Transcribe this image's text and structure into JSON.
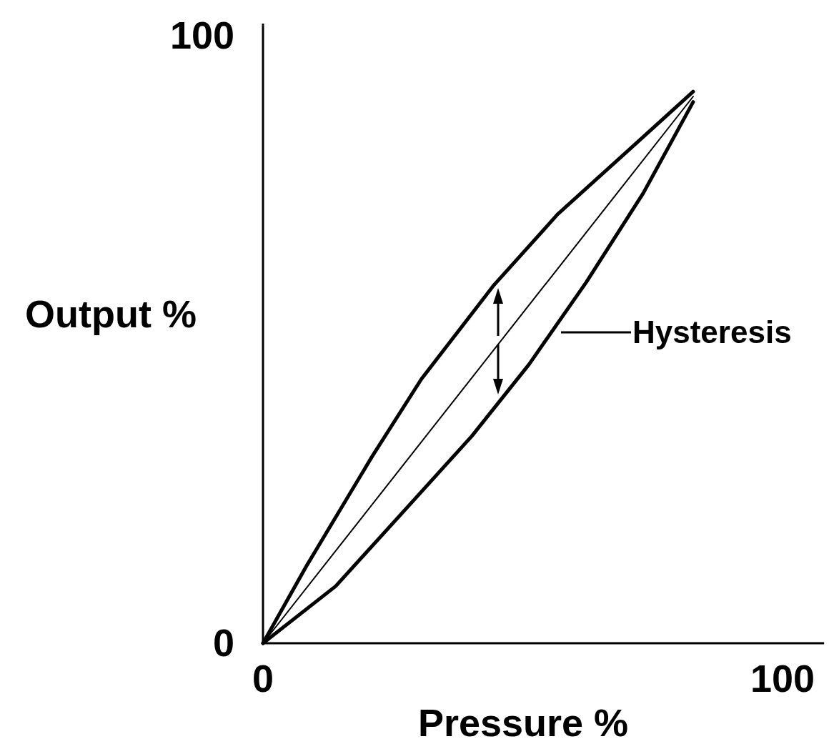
{
  "chart_data": {
    "type": "line",
    "xlabel": "Pressure %",
    "ylabel": "Output %",
    "xlim": [
      0,
      108
    ],
    "ylim": [
      0,
      102
    ],
    "xticks": [
      0,
      100
    ],
    "yticks": [
      0,
      100
    ],
    "grid": false,
    "marker": "none",
    "line_style": "solid",
    "series": [
      {
        "color": "#000000",
        "x": [
          0,
          8.5,
          20.9,
          30.5,
          44.3,
          56.7,
          70.4,
          82.8
        ],
        "values": [
          0,
          12.9,
          30.6,
          43.5,
          58.8,
          70.6,
          81.2,
          90.8
        ]
      },
      {
        "color": "#000000",
        "x": [
          0,
          82.8
        ],
        "values": [
          0,
          90
        ]
      },
      {
        "color": "#000000",
        "x": [
          0,
          14,
          27.8,
          40.2,
          51.2,
          62.2,
          73.2,
          82.8
        ],
        "values": [
          0,
          9.4,
          22.4,
          34.1,
          45.9,
          59.4,
          74.1,
          89.1
        ]
      }
    ],
    "annotations": [
      "Hysteresis"
    ]
  }
}
